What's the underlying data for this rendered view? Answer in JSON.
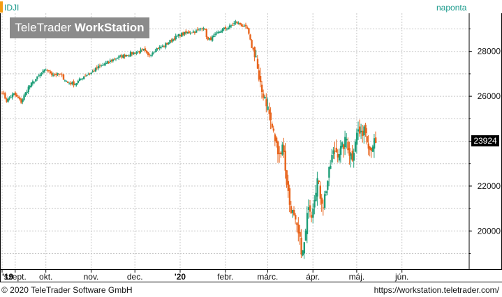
{
  "header": {
    "symbol": "IDJI",
    "period": "naponta"
  },
  "logo": {
    "part1": "TeleTrader ",
    "part2": "WorkStation"
  },
  "footer": {
    "copyright": "© 2020 TeleTrader Software GmbH",
    "url": "https://workstation.teletrader.com/"
  },
  "last_price": "23924",
  "colors": {
    "up": "#1e9e78",
    "down": "#e8641c",
    "accent": "#1a9a8c",
    "grid": "#c8c8c8",
    "axis": "#000000"
  },
  "chart_data": {
    "type": "candlestick",
    "ylim": [
      18300,
      29700
    ],
    "yticks": [
      20000,
      22000,
      24000,
      26000,
      28000
    ],
    "y_tick_labels": [
      "20000",
      "22000",
      "",
      "26000",
      "28000"
    ],
    "x_labels": [
      {
        "label": "'19",
        "day": 0
      },
      {
        "label": "szept.",
        "day": 9
      },
      {
        "label": "okt.",
        "day": 30
      },
      {
        "label": "nov.",
        "day": 61
      },
      {
        "label": "dec.",
        "day": 91
      },
      {
        "label": "'20",
        "day": 122
      },
      {
        "label": "febr.",
        "day": 153
      },
      {
        "label": "márc.",
        "day": 182
      },
      {
        "label": "ápr.",
        "day": 213
      },
      {
        "label": "máj.",
        "day": 243
      },
      {
        "label": "jún.",
        "day": 274
      }
    ],
    "close_path": [
      [
        0,
        26200
      ],
      [
        3,
        25800
      ],
      [
        8,
        26100
      ],
      [
        13,
        25750
      ],
      [
        18,
        26400
      ],
      [
        22,
        26700
      ],
      [
        30,
        27200
      ],
      [
        34,
        27000
      ],
      [
        40,
        26950
      ],
      [
        45,
        26600
      ],
      [
        50,
        26550
      ],
      [
        56,
        26900
      ],
      [
        61,
        27050
      ],
      [
        66,
        27300
      ],
      [
        72,
        27500
      ],
      [
        78,
        27700
      ],
      [
        85,
        27850
      ],
      [
        91,
        27950
      ],
      [
        97,
        28050
      ],
      [
        100,
        27800
      ],
      [
        105,
        28100
      ],
      [
        111,
        28250
      ],
      [
        117,
        28550
      ],
      [
        122,
        28750
      ],
      [
        128,
        28850
      ],
      [
        133,
        28900
      ],
      [
        138,
        29100
      ],
      [
        141,
        28500
      ],
      [
        145,
        28650
      ],
      [
        150,
        28950
      ],
      [
        156,
        29100
      ],
      [
        160,
        29300
      ],
      [
        163,
        29200
      ],
      [
        168,
        29000
      ],
      [
        171,
        28200
      ],
      [
        174,
        27800
      ],
      [
        176,
        26600
      ],
      [
        178,
        26200
      ],
      [
        180,
        26000
      ],
      [
        183,
        25200
      ],
      [
        185,
        24600
      ],
      [
        188,
        23800
      ],
      [
        191,
        23400
      ],
      [
        192,
        24000
      ],
      [
        195,
        22200
      ],
      [
        197,
        21200
      ],
      [
        199,
        20800
      ],
      [
        201,
        20300
      ],
      [
        203,
        19800
      ],
      [
        205,
        19200
      ],
      [
        206,
        19000
      ],
      [
        208,
        19900
      ],
      [
        210,
        21300
      ],
      [
        212,
        20800
      ],
      [
        214,
        21600
      ],
      [
        216,
        22300
      ],
      [
        218,
        21600
      ],
      [
        220,
        21200
      ],
      [
        222,
        21900
      ],
      [
        224,
        22600
      ],
      [
        226,
        23300
      ],
      [
        228,
        23600
      ],
      [
        230,
        23500
      ],
      [
        233,
        23700
      ],
      [
        236,
        24100
      ],
      [
        238,
        23500
      ],
      [
        240,
        23300
      ],
      [
        242,
        24100
      ],
      [
        244,
        24500
      ],
      [
        246,
        24200
      ],
      [
        248,
        24700
      ],
      [
        250,
        24200
      ],
      [
        252,
        23650
      ],
      [
        254,
        23900
      ],
      [
        256,
        23924
      ]
    ]
  }
}
